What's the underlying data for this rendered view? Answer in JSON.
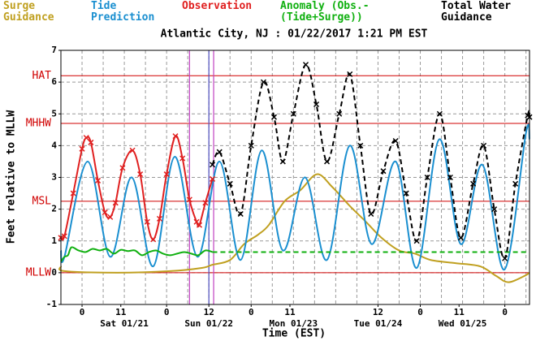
{
  "chart_data": {
    "type": "line",
    "title": "Atlantic City, NJ : 01/22/2017 1:21 PM EST",
    "y_label": "Feet relative to MLLW",
    "x_label": "Time (EST)",
    "xlim": [
      -6,
      127
    ],
    "ylim": [
      -1,
      7
    ],
    "yticks": [
      -1,
      0,
      1,
      2,
      3,
      4,
      5,
      6,
      7
    ],
    "xticks": [
      {
        "value": 0,
        "label": "0"
      },
      {
        "value": 11,
        "label": "11"
      },
      {
        "value": 24,
        "label": "0"
      },
      {
        "value": 36,
        "label": "12"
      },
      {
        "value": 48,
        "label": "0"
      },
      {
        "value": 59,
        "label": "11"
      },
      {
        "value": 84,
        "label": "12"
      },
      {
        "value": 96,
        "label": "0"
      },
      {
        "value": 107,
        "label": "11"
      },
      {
        "value": 120,
        "label": "0"
      }
    ],
    "day_labels": [
      {
        "value": 12,
        "label": "Sat 01/21"
      },
      {
        "value": 36,
        "label": "Sun 01/22"
      },
      {
        "value": 60,
        "label": "Mon 01/23"
      },
      {
        "value": 84,
        "label": "Tue 01/24"
      },
      {
        "value": 108,
        "label": "Wed 01/25"
      }
    ],
    "xgrid": [
      -6,
      0,
      6,
      12,
      18,
      24,
      30,
      36,
      42,
      48,
      54,
      60,
      66,
      72,
      78,
      84,
      90,
      96,
      102,
      108,
      114,
      120,
      126
    ],
    "grid": true,
    "datums": [
      {
        "label": "HAT",
        "value": 6.2
      },
      {
        "label": "MHHW",
        "value": 4.7
      },
      {
        "label": "MSL",
        "value": 2.25
      },
      {
        "label": "MLLW",
        "value": 0
      }
    ],
    "datum_color": "#d00000",
    "time_markers": [
      {
        "value": 30.5,
        "color": "#c040c0"
      },
      {
        "value": 36,
        "color": "#5050c0"
      },
      {
        "value": 37.35,
        "color": "#c040c0"
      }
    ],
    "series": [
      {
        "name": "Surge Guidance",
        "color": "#c0a020",
        "style": "solid",
        "markers": false,
        "x": [
          -6,
          -5,
          10,
          25,
          34,
          37,
          42,
          46,
          50,
          53,
          57.5,
          62,
          66.7,
          71,
          76,
          80.6,
          85,
          90,
          94.5,
          99,
          106,
          113,
          117.5,
          121,
          125.6,
          127
        ],
        "values": [
          0.2,
          0.05,
          0.0,
          0.05,
          0.15,
          0.25,
          0.4,
          0.9,
          1.2,
          1.5,
          2.25,
          2.6,
          3.1,
          2.7,
          2.1,
          1.6,
          1.1,
          0.7,
          0.6,
          0.4,
          0.3,
          0.2,
          -0.1,
          -0.3,
          -0.1,
          0.0
        ]
      },
      {
        "name": "Tide Prediction",
        "color": "#1a8fd0",
        "style": "solid",
        "markers": false,
        "x": [
          -6,
          -5,
          1.6,
          8,
          14.1,
          20.2,
          26.3,
          32.8,
          39,
          45,
          51,
          57,
          63.3,
          69.5,
          76,
          82.2,
          89,
          95,
          101.4,
          107.5,
          113.6,
          119.9,
          126,
          127
        ],
        "values": [
          0.7,
          0.5,
          3.5,
          0.5,
          3.0,
          0.2,
          3.65,
          0.5,
          3.5,
          0.4,
          3.85,
          0.7,
          3.0,
          0.4,
          4.0,
          0.9,
          3.5,
          0.15,
          4.2,
          0.9,
          3.4,
          0.1,
          4.4,
          4.2
        ]
      },
      {
        "name": "Observation",
        "color": "#e02020",
        "style": "solid",
        "markers": true,
        "x": [
          -6,
          -5,
          -2.5,
          0,
          1.2,
          2.5,
          4.5,
          6.5,
          8,
          9.5,
          11.5,
          14.3,
          16.5,
          18.5,
          20.2,
          22,
          24,
          26.5,
          28.5,
          30.5,
          32.5,
          33.3,
          35,
          37
        ],
        "values": [
          1.1,
          1.15,
          2.5,
          3.9,
          4.25,
          4.1,
          2.9,
          1.9,
          1.75,
          2.2,
          3.3,
          3.85,
          3.1,
          1.6,
          1.05,
          1.7,
          3.1,
          4.3,
          3.6,
          2.3,
          1.6,
          1.5,
          2.2,
          2.95
        ]
      },
      {
        "name": "Anomaly (Obs.-(Tide+Surge))",
        "color": "#10b010",
        "style": "solid",
        "markers": false,
        "x": [
          -6,
          -5,
          -4,
          -3,
          -1,
          1,
          3,
          5,
          7,
          9,
          11,
          13,
          15,
          17,
          19,
          21,
          23,
          25,
          27,
          29,
          31,
          33,
          35,
          37
        ],
        "values": [
          0.35,
          0.5,
          0.55,
          0.8,
          0.7,
          0.65,
          0.75,
          0.7,
          0.75,
          0.6,
          0.72,
          0.68,
          0.7,
          0.55,
          0.65,
          0.7,
          0.6,
          0.55,
          0.6,
          0.65,
          0.6,
          0.55,
          0.7,
          0.65
        ]
      },
      {
        "color": "#10b010",
        "style": "dashed",
        "markers": false,
        "x": [
          37,
          127
        ],
        "values": [
          0.65,
          0.65
        ]
      },
      {
        "name": "Total Water Guidance",
        "color": "#000000",
        "style": "dashed",
        "markers": true,
        "x": [
          37,
          39,
          42,
          45,
          48,
          51.5,
          54.5,
          57,
          60,
          63.5,
          66.5,
          69.5,
          73,
          76,
          79,
          82,
          85.5,
          89,
          92,
          95,
          98,
          101.5,
          104.5,
          107.5,
          111,
          114,
          117,
          120,
          123,
          126.5,
          127
        ],
        "values": [
          3.4,
          3.8,
          2.8,
          1.85,
          4.0,
          6.0,
          4.9,
          3.5,
          5.0,
          6.55,
          5.3,
          3.5,
          5.0,
          6.25,
          4.0,
          1.85,
          3.2,
          4.15,
          2.5,
          1.0,
          3.0,
          5.0,
          3.0,
          1.1,
          2.8,
          4.0,
          2.0,
          0.45,
          2.8,
          4.95,
          4.9
        ]
      }
    ]
  }
}
